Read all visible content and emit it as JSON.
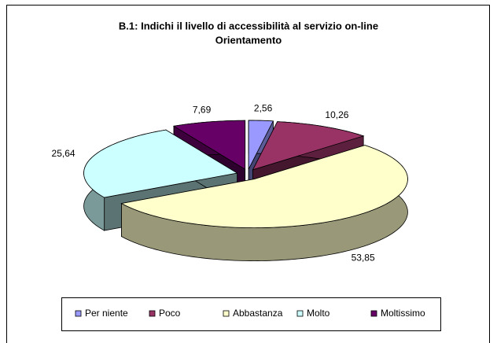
{
  "chart_data": {
    "type": "pie3d",
    "title": [
      "B.1: Indichi il livello di accessibilità al servizio on-line",
      "Orientamento"
    ],
    "categories": [
      "Per niente",
      "Poco",
      "Abbastanza",
      "Molto",
      "Moltissimo"
    ],
    "values": [
      2.56,
      10.26,
      53.85,
      25.64,
      7.69
    ],
    "value_labels": [
      "2,56",
      "10,26",
      "53,85",
      "25,64",
      "7,69"
    ],
    "colors": [
      "#9999ff",
      "#993366",
      "#ffffcc",
      "#ccffff",
      "#660066"
    ],
    "legend": "bottom"
  }
}
